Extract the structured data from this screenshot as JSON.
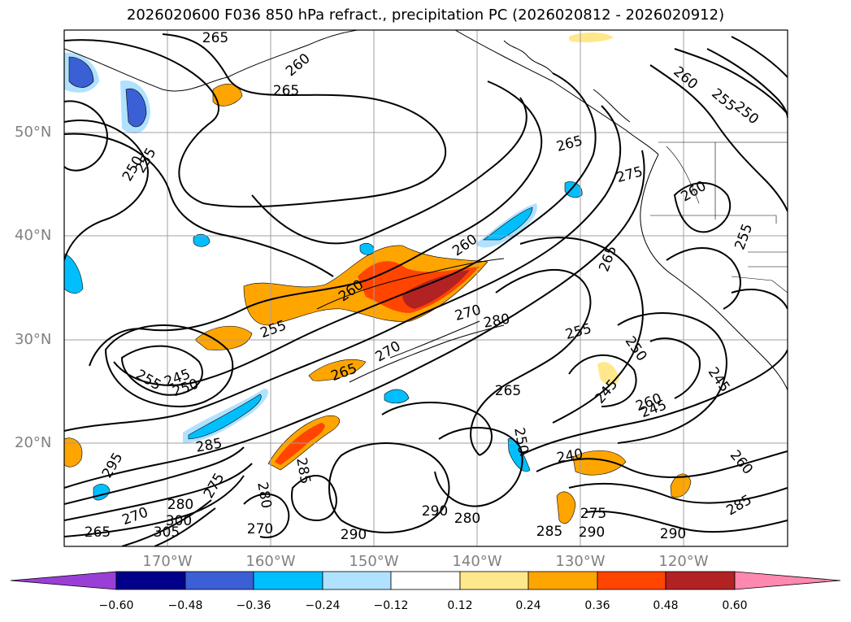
{
  "title": "2026020600 F036 850 hPa refract., precipitation PC (2026020812 - 2026020912)",
  "lat_labels": [
    "50°N",
    "40°N",
    "30°N",
    "20°N"
  ],
  "lon_labels": [
    "170°W",
    "160°W",
    "150°W",
    "140°W",
    "130°W",
    "120°W"
  ],
  "contour_labels": [
    "265",
    "260",
    "265",
    "250",
    "255",
    "260",
    "255",
    "250",
    "265",
    "275",
    "260",
    "255",
    "265",
    "260",
    "260",
    "255",
    "270",
    "280",
    "270",
    "265",
    "255",
    "250",
    "245",
    "265",
    "245",
    "255",
    "245",
    "250",
    "260",
    "240",
    "245",
    "275",
    "285",
    "290",
    "295",
    "270",
    "285",
    "280",
    "290",
    "285",
    "290",
    "265",
    "250",
    "275",
    "290",
    "260",
    "285",
    "270",
    "280",
    "280",
    "300",
    "305"
  ],
  "colorbar": {
    "colors": [
      "#9a3fd6",
      "#00008b",
      "#3b5fd4",
      "#00bfff",
      "#b0e2ff",
      "#ffffff",
      "#ffe88c",
      "#ffa500",
      "#ff4500",
      "#b22222",
      "#ff88b0"
    ],
    "ticks": [
      "−0.60",
      "−0.48",
      "−0.36",
      "−0.24",
      "−0.12",
      "0.12",
      "0.24",
      "0.36",
      "0.48",
      "0.60"
    ]
  }
}
